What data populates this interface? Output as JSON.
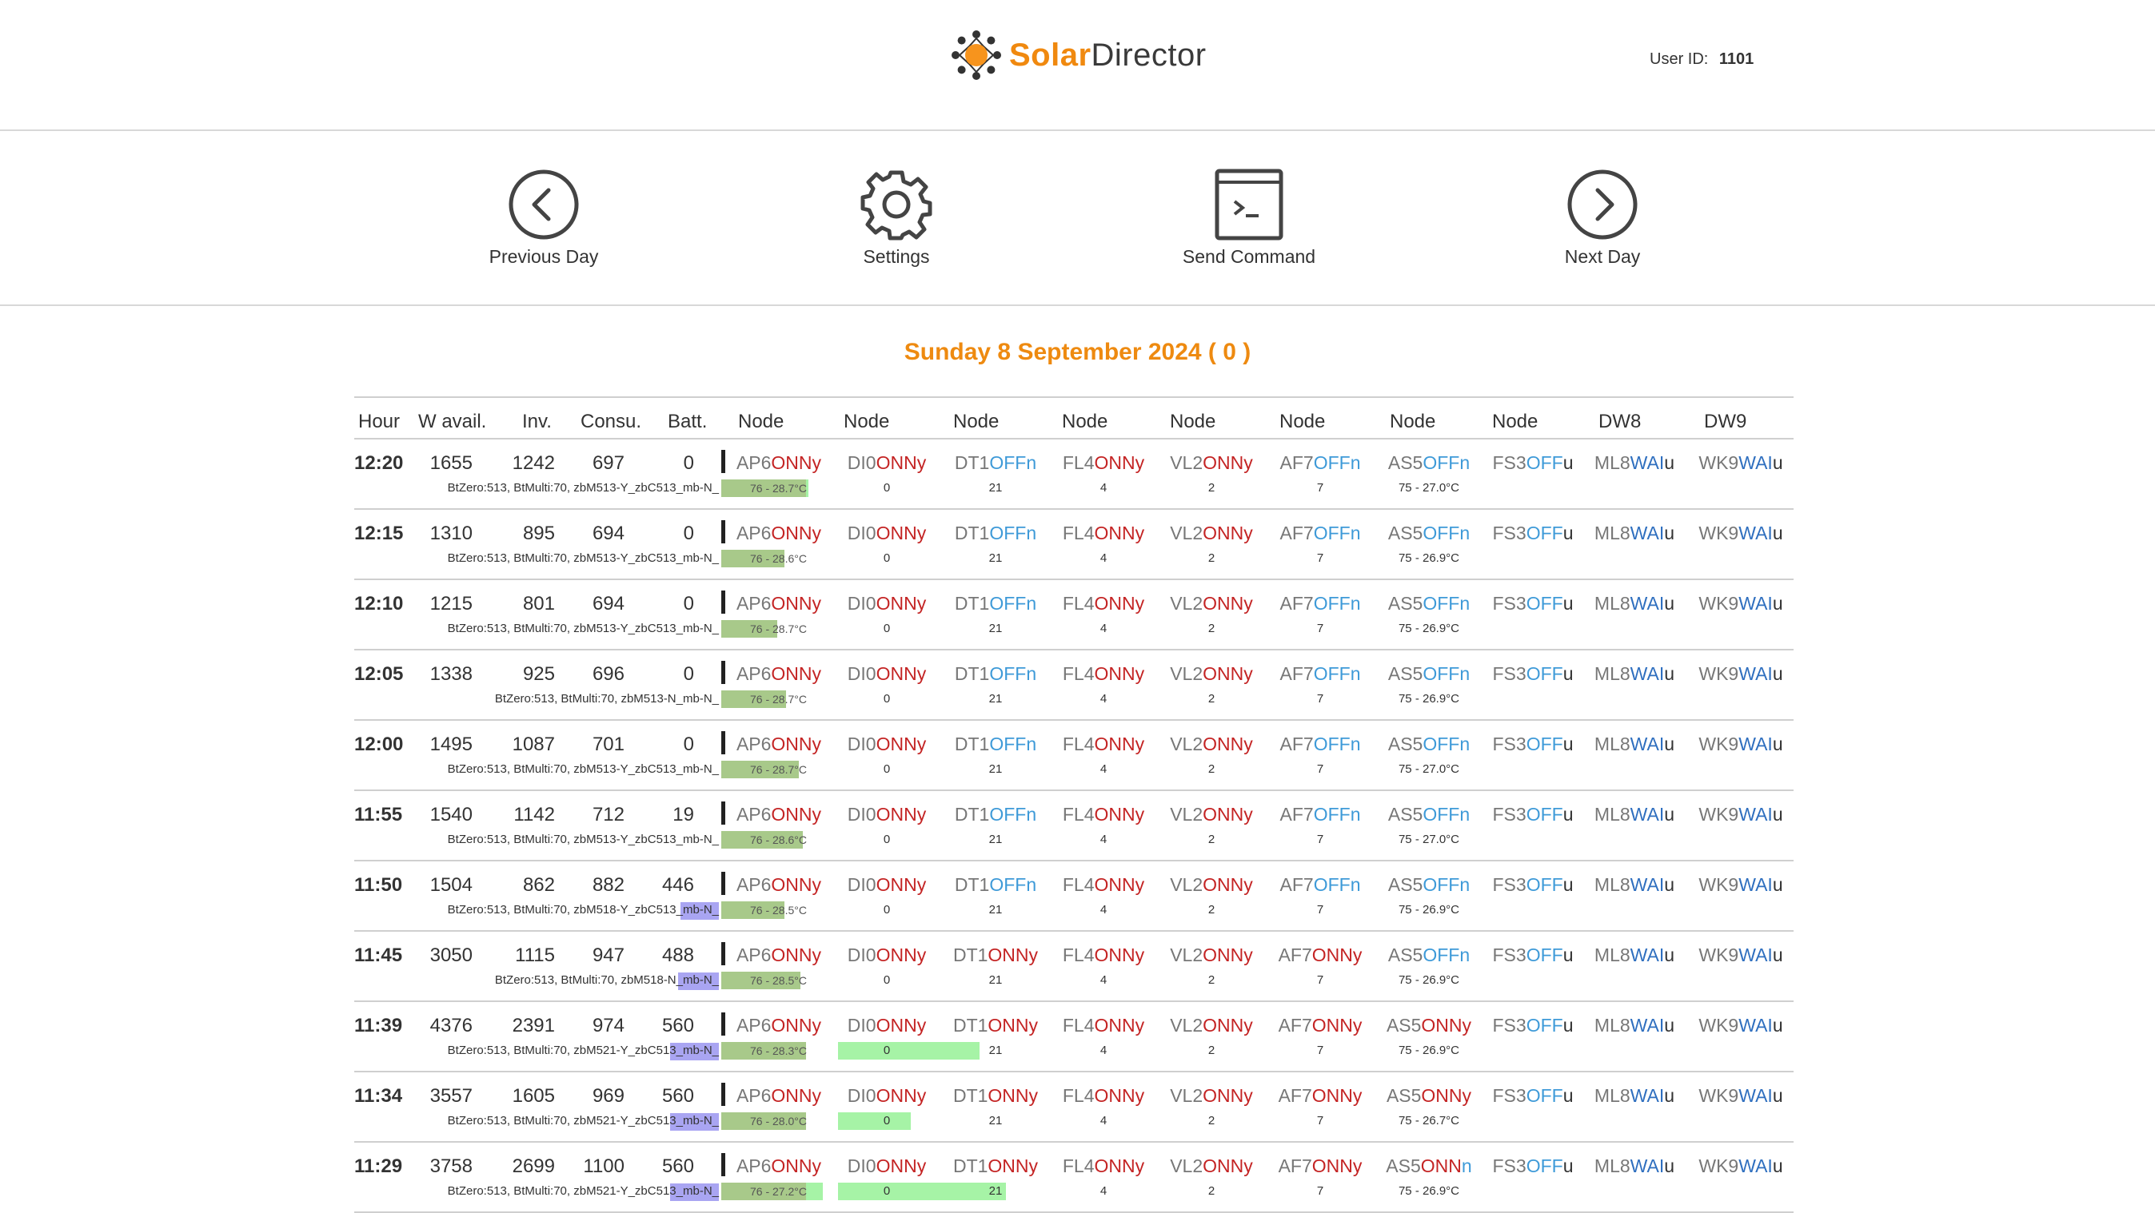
{
  "header": {
    "logo_solar": "Solar",
    "logo_director": "Director",
    "user_label": "User ID:",
    "user_id": "1101"
  },
  "nav": {
    "previous_day": "Previous Day",
    "settings": "Settings",
    "send_command": "Send Command",
    "next_day": "Next Day"
  },
  "date_title": "Sunday 8 September 2024  ( 0 )",
  "columns": [
    "Hour",
    "W avail.",
    "Inv.",
    "Consu.",
    "Batt.",
    "Node",
    "Node",
    "Node",
    "Node",
    "Node",
    "Node",
    "Node",
    "Node",
    "DW8",
    "DW9"
  ],
  "colors": {
    "accent": "#ee8a10",
    "on": "#c42424",
    "off": "#3e9ad8",
    "wai": "#2f6fbf",
    "bar_green": "#a6f3a6",
    "bar_purple": "#a9a5f2"
  },
  "rows": [
    {
      "hour": "12:20",
      "wavail": "1655",
      "inv": "1242",
      "consu": "697",
      "batt": "0",
      "dev": "BtZero:513, BtMulti:70, zbM513-Y_zbC513_mb-N_",
      "purple": 0,
      "ap_bar": 0.62,
      "ap_label": "76 - 28.7°C",
      "nodes": [
        [
          "AP6",
          "ONN",
          "y"
        ],
        [
          "DI0",
          "ONN",
          "y"
        ],
        [
          "DT1",
          "OFF",
          "n"
        ],
        [
          "FL4",
          "ONN",
          "y"
        ],
        [
          "VL2",
          "ONN",
          "y"
        ],
        [
          "AF7",
          "OFF",
          "n"
        ],
        [
          "AS5",
          "OFF",
          "n"
        ],
        [
          "FS3",
          "OFF",
          "u"
        ],
        [
          "ML8",
          "WAI",
          "u"
        ],
        [
          "WK9",
          "WAI",
          "u"
        ]
      ],
      "subs": [
        "",
        "0",
        "21",
        "4",
        "2",
        "7",
        "75 - 27.0°C",
        "",
        "",
        ""
      ],
      "di_bar": 0,
      "dt_bar": 0
    },
    {
      "hour": "12:15",
      "wavail": "1310",
      "inv": "895",
      "consu": "694",
      "batt": "0",
      "dev": "BtZero:513, BtMulti:70, zbM513-Y_zbC513_mb-N_",
      "purple": 0,
      "ap_bar": 0.45,
      "ap_label": "76 - 28.6°C",
      "nodes": [
        [
          "AP6",
          "ONN",
          "y"
        ],
        [
          "DI0",
          "ONN",
          "y"
        ],
        [
          "DT1",
          "OFF",
          "n"
        ],
        [
          "FL4",
          "ONN",
          "y"
        ],
        [
          "VL2",
          "ONN",
          "y"
        ],
        [
          "AF7",
          "OFF",
          "n"
        ],
        [
          "AS5",
          "OFF",
          "n"
        ],
        [
          "FS3",
          "OFF",
          "u"
        ],
        [
          "ML8",
          "WAI",
          "u"
        ],
        [
          "WK9",
          "WAI",
          "u"
        ]
      ],
      "subs": [
        "",
        "0",
        "21",
        "4",
        "2",
        "7",
        "75 - 26.9°C",
        "",
        "",
        ""
      ],
      "di_bar": 0,
      "dt_bar": 0
    },
    {
      "hour": "12:10",
      "wavail": "1215",
      "inv": "801",
      "consu": "694",
      "batt": "0",
      "dev": "BtZero:513, BtMulti:70, zbM513-Y_zbC513_mb-N_",
      "purple": 0,
      "ap_bar": 0.4,
      "ap_label": "76 - 28.7°C",
      "nodes": [
        [
          "AP6",
          "ONN",
          "y"
        ],
        [
          "DI0",
          "ONN",
          "y"
        ],
        [
          "DT1",
          "OFF",
          "n"
        ],
        [
          "FL4",
          "ONN",
          "y"
        ],
        [
          "VL2",
          "ONN",
          "y"
        ],
        [
          "AF7",
          "OFF",
          "n"
        ],
        [
          "AS5",
          "OFF",
          "n"
        ],
        [
          "FS3",
          "OFF",
          "u"
        ],
        [
          "ML8",
          "WAI",
          "u"
        ],
        [
          "WK9",
          "WAI",
          "u"
        ]
      ],
      "subs": [
        "",
        "0",
        "21",
        "4",
        "2",
        "7",
        "75 - 26.9°C",
        "",
        "",
        ""
      ],
      "di_bar": 0,
      "dt_bar": 0
    },
    {
      "hour": "12:05",
      "wavail": "1338",
      "inv": "925",
      "consu": "696",
      "batt": "0",
      "dev": "BtZero:513, BtMulti:70, zbM513-N_mb-N_",
      "purple": 0,
      "ap_bar": 0.46,
      "ap_label": "76 - 28.7°C",
      "nodes": [
        [
          "AP6",
          "ONN",
          "y"
        ],
        [
          "DI0",
          "ONN",
          "y"
        ],
        [
          "DT1",
          "OFF",
          "n"
        ],
        [
          "FL4",
          "ONN",
          "y"
        ],
        [
          "VL2",
          "ONN",
          "y"
        ],
        [
          "AF7",
          "OFF",
          "n"
        ],
        [
          "AS5",
          "OFF",
          "n"
        ],
        [
          "FS3",
          "OFF",
          "u"
        ],
        [
          "ML8",
          "WAI",
          "u"
        ],
        [
          "WK9",
          "WAI",
          "u"
        ]
      ],
      "subs": [
        "",
        "0",
        "21",
        "4",
        "2",
        "7",
        "75 - 26.9°C",
        "",
        "",
        ""
      ],
      "di_bar": 0,
      "dt_bar": 0
    },
    {
      "hour": "12:00",
      "wavail": "1495",
      "inv": "1087",
      "consu": "701",
      "batt": "0",
      "dev": "BtZero:513, BtMulti:70, zbM513-Y_zbC513_mb-N_",
      "purple": 0,
      "ap_bar": 0.55,
      "ap_label": "76 - 28.7°C",
      "nodes": [
        [
          "AP6",
          "ONN",
          "y"
        ],
        [
          "DI0",
          "ONN",
          "y"
        ],
        [
          "DT1",
          "OFF",
          "n"
        ],
        [
          "FL4",
          "ONN",
          "y"
        ],
        [
          "VL2",
          "ONN",
          "y"
        ],
        [
          "AF7",
          "OFF",
          "n"
        ],
        [
          "AS5",
          "OFF",
          "n"
        ],
        [
          "FS3",
          "OFF",
          "u"
        ],
        [
          "ML8",
          "WAI",
          "u"
        ],
        [
          "WK9",
          "WAI",
          "u"
        ]
      ],
      "subs": [
        "",
        "0",
        "21",
        "4",
        "2",
        "7",
        "75 - 27.0°C",
        "",
        "",
        ""
      ],
      "di_bar": 0,
      "dt_bar": 0
    },
    {
      "hour": "11:55",
      "wavail": "1540",
      "inv": "1142",
      "consu": "712",
      "batt": "19",
      "dev": "BtZero:513, BtMulti:70, zbM513-Y_zbC513_mb-N_",
      "purple": 0,
      "ap_bar": 0.58,
      "ap_label": "76 - 28.6°C",
      "nodes": [
        [
          "AP6",
          "ONN",
          "y"
        ],
        [
          "DI0",
          "ONN",
          "y"
        ],
        [
          "DT1",
          "OFF",
          "n"
        ],
        [
          "FL4",
          "ONN",
          "y"
        ],
        [
          "VL2",
          "ONN",
          "y"
        ],
        [
          "AF7",
          "OFF",
          "n"
        ],
        [
          "AS5",
          "OFF",
          "n"
        ],
        [
          "FS3",
          "OFF",
          "u"
        ],
        [
          "ML8",
          "WAI",
          "u"
        ],
        [
          "WK9",
          "WAI",
          "u"
        ]
      ],
      "subs": [
        "",
        "0",
        "21",
        "4",
        "2",
        "7",
        "75 - 27.0°C",
        "",
        "",
        ""
      ],
      "di_bar": 0,
      "dt_bar": 0
    },
    {
      "hour": "11:50",
      "wavail": "1504",
      "inv": "862",
      "consu": "882",
      "batt": "446",
      "dev": "BtZero:513, BtMulti:70, zbM518-Y_zbC513_mb-N_",
      "purple": 0.28,
      "ap_bar": 0.45,
      "ap_label": "76 - 28.5°C",
      "nodes": [
        [
          "AP6",
          "ONN",
          "y"
        ],
        [
          "DI0",
          "ONN",
          "y"
        ],
        [
          "DT1",
          "OFF",
          "n"
        ],
        [
          "FL4",
          "ONN",
          "y"
        ],
        [
          "VL2",
          "ONN",
          "y"
        ],
        [
          "AF7",
          "OFF",
          "n"
        ],
        [
          "AS5",
          "OFF",
          "n"
        ],
        [
          "FS3",
          "OFF",
          "u"
        ],
        [
          "ML8",
          "WAI",
          "u"
        ],
        [
          "WK9",
          "WAI",
          "u"
        ]
      ],
      "subs": [
        "",
        "0",
        "21",
        "4",
        "2",
        "7",
        "75 - 26.9°C",
        "",
        "",
        ""
      ],
      "di_bar": 0,
      "dt_bar": 0
    },
    {
      "hour": "11:45",
      "wavail": "3050",
      "inv": "1115",
      "consu": "947",
      "batt": "488",
      "dev": "BtZero:513, BtMulti:70, zbM518-N_mb-N_",
      "purple": 0.3,
      "ap_bar": 0.56,
      "ap_label": "76 - 28.5°C",
      "nodes": [
        [
          "AP6",
          "ONN",
          "y"
        ],
        [
          "DI0",
          "ONN",
          "y"
        ],
        [
          "DT1",
          "ONN",
          "y"
        ],
        [
          "FL4",
          "ONN",
          "y"
        ],
        [
          "VL2",
          "ONN",
          "y"
        ],
        [
          "AF7",
          "ONN",
          "y"
        ],
        [
          "AS5",
          "OFF",
          "n"
        ],
        [
          "FS3",
          "OFF",
          "u"
        ],
        [
          "ML8",
          "WAI",
          "u"
        ],
        [
          "WK9",
          "WAI",
          "u"
        ]
      ],
      "subs": [
        "",
        "0",
        "21",
        "4",
        "2",
        "7",
        "75 - 26.9°C",
        "",
        "",
        ""
      ],
      "di_bar": 0,
      "dt_bar": 0
    },
    {
      "hour": "11:39",
      "wavail": "4376",
      "inv": "2391",
      "consu": "974",
      "batt": "560",
      "dev": "BtZero:513, BtMulti:70, zbM521-Y_zbC513_mb-N_",
      "purple": 0.36,
      "ap_bar": 0.6,
      "ap_label": "76 - 28.3°C",
      "nodes": [
        [
          "AP6",
          "ONN",
          "y"
        ],
        [
          "DI0",
          "ONN",
          "y"
        ],
        [
          "DT1",
          "ONN",
          "y"
        ],
        [
          "FL4",
          "ONN",
          "y"
        ],
        [
          "VL2",
          "ONN",
          "y"
        ],
        [
          "AF7",
          "ONN",
          "y"
        ],
        [
          "AS5",
          "ONN",
          "y"
        ],
        [
          "FS3",
          "OFF",
          "u"
        ],
        [
          "ML8",
          "WAI",
          "u"
        ],
        [
          "WK9",
          "WAI",
          "u"
        ]
      ],
      "subs": [
        "",
        "0",
        "21",
        "4",
        "2",
        "7",
        "75 - 26.9°C",
        "",
        "",
        ""
      ],
      "di_bar": 1,
      "dt_bar": 0.16
    },
    {
      "hour": "11:34",
      "wavail": "3557",
      "inv": "1605",
      "consu": "969",
      "batt": "560",
      "dev": "BtZero:513, BtMulti:70, zbM521-Y_zbC513_mb-N_",
      "purple": 0.36,
      "ap_bar": 0.6,
      "ap_label": "76 - 28.0°C",
      "nodes": [
        [
          "AP6",
          "ONN",
          "y"
        ],
        [
          "DI0",
          "ONN",
          "y"
        ],
        [
          "DT1",
          "ONN",
          "y"
        ],
        [
          "FL4",
          "ONN",
          "y"
        ],
        [
          "VL2",
          "ONN",
          "y"
        ],
        [
          "AF7",
          "ONN",
          "y"
        ],
        [
          "AS5",
          "ONN",
          "y"
        ],
        [
          "FS3",
          "OFF",
          "u"
        ],
        [
          "ML8",
          "WAI",
          "u"
        ],
        [
          "WK9",
          "WAI",
          "u"
        ]
      ],
      "subs": [
        "",
        "0",
        "21",
        "4",
        "2",
        "7",
        "75 - 26.7°C",
        "",
        "",
        ""
      ],
      "di_bar": 0.68,
      "dt_bar": 0
    },
    {
      "hour": "11:29",
      "wavail": "3758",
      "inv": "2699",
      "consu": "1100",
      "batt": "560",
      "dev": "BtZero:513, BtMulti:70, zbM521-Y_zbC513_mb-N_",
      "purple": 0.36,
      "ap_bar": 0.72,
      "ap_label": "76 - 27.2°C",
      "nodes": [
        [
          "AP6",
          "ONN",
          "y"
        ],
        [
          "DI0",
          "ONN",
          "y"
        ],
        [
          "DT1",
          "ONN",
          "y"
        ],
        [
          "FL4",
          "ONN",
          "y"
        ],
        [
          "VL2",
          "ONN",
          "y"
        ],
        [
          "AF7",
          "ONN",
          "y"
        ],
        [
          "AS5",
          "ONN",
          "n"
        ],
        [
          "FS3",
          "OFF",
          "u"
        ],
        [
          "ML8",
          "WAI",
          "u"
        ],
        [
          "WK9",
          "WAI",
          "u"
        ]
      ],
      "subs": [
        "",
        "0",
        "21",
        "4",
        "2",
        "7",
        "75 - 26.9°C",
        "",
        "",
        ""
      ],
      "di_bar": 1,
      "dt_bar": 0.28
    }
  ]
}
